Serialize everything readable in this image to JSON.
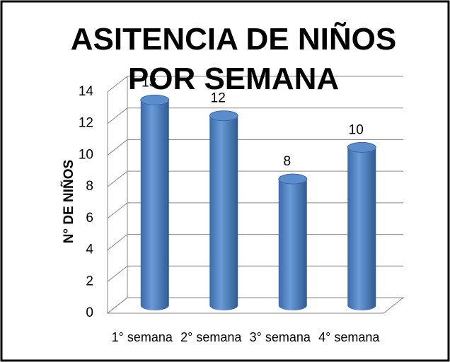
{
  "chart_data": {
    "type": "bar3d",
    "title": "ASITENCIA  DE NIÑOS POR SEMANA",
    "y_label": "N° DE NIÑOS",
    "categories": [
      "1° semana",
      "2° semana",
      "3° semana",
      "4° semana"
    ],
    "values": [
      13,
      12,
      8,
      10
    ],
    "color": "#4f81bd",
    "ylim": [
      0,
      14
    ],
    "yticks": [
      0,
      2,
      4,
      6,
      8,
      10,
      12,
      14
    ],
    "grid": true
  }
}
